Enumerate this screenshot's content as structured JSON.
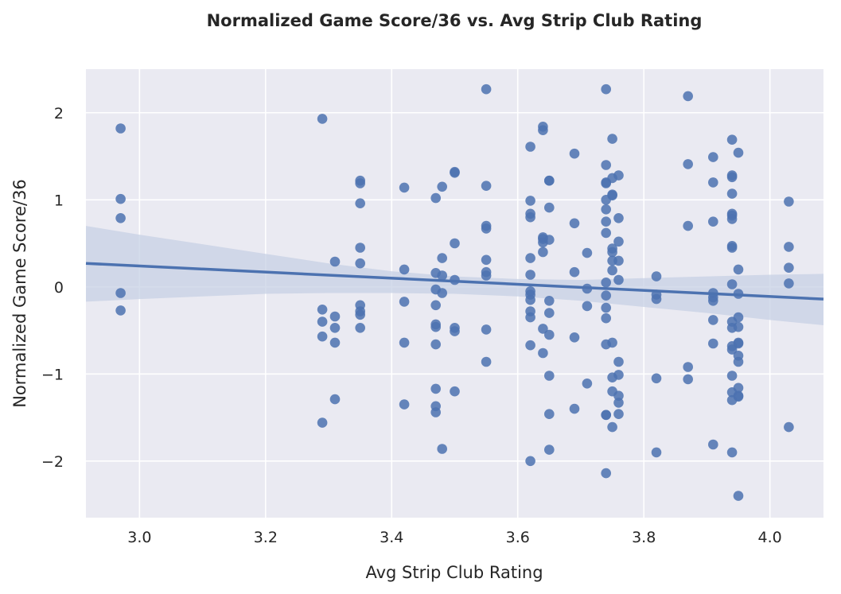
{
  "chart_data": {
    "type": "scatter",
    "title": "Normalized Game Score/36 vs. Avg Strip Club Rating",
    "xlabel": "Avg Strip Club Rating",
    "ylabel": "Normalized Game Score/36",
    "xlim": [
      2.915,
      4.085
    ],
    "ylim": [
      -2.65,
      2.5
    ],
    "xticks": [
      3.0,
      3.2,
      3.4,
      3.6,
      3.8,
      4.0
    ],
    "xtick_labels": [
      "3.0",
      "3.2",
      "3.4",
      "3.6",
      "3.8",
      "4.0"
    ],
    "yticks": [
      -2,
      -1,
      0,
      1,
      2
    ],
    "ytick_labels": [
      "−2",
      "−1",
      "0",
      "1",
      "2"
    ],
    "grid": true,
    "background": "#eaeaf2",
    "point_color": "#4c72b0",
    "line_color": "#4c72b0",
    "band_color": "#c7d0e4",
    "regression": {
      "x": [
        2.915,
        4.085
      ],
      "y": [
        0.27,
        -0.14
      ],
      "ci_lower": [
        -0.17,
        -0.44
      ],
      "ci_upper": [
        0.7,
        0.15
      ]
    },
    "band": [
      [
        2.915,
        0.7
      ],
      [
        3.0,
        0.6
      ],
      [
        3.1,
        0.49
      ],
      [
        3.2,
        0.38
      ],
      [
        3.3,
        0.27
      ],
      [
        3.4,
        0.18
      ],
      [
        3.5,
        0.12
      ],
      [
        3.6,
        0.09
      ],
      [
        3.7,
        0.08
      ],
      [
        3.8,
        0.1
      ],
      [
        3.9,
        0.12
      ],
      [
        4.0,
        0.14
      ],
      [
        4.085,
        0.15
      ],
      [
        4.085,
        -0.44
      ],
      [
        4.0,
        -0.38
      ],
      [
        3.9,
        -0.3
      ],
      [
        3.8,
        -0.23
      ],
      [
        3.7,
        -0.16
      ],
      [
        3.6,
        -0.11
      ],
      [
        3.5,
        -0.08
      ],
      [
        3.4,
        -0.07
      ],
      [
        3.3,
        -0.07
      ],
      [
        3.2,
        -0.08
      ],
      [
        3.1,
        -0.11
      ],
      [
        3.0,
        -0.14
      ],
      [
        2.915,
        -0.17
      ]
    ],
    "points": [
      [
        2.97,
        1.82
      ],
      [
        2.97,
        1.01
      ],
      [
        2.97,
        0.79
      ],
      [
        2.97,
        -0.07
      ],
      [
        2.97,
        -0.27
      ],
      [
        3.29,
        1.93
      ],
      [
        3.29,
        -0.26
      ],
      [
        3.29,
        -0.4
      ],
      [
        3.29,
        -0.57
      ],
      [
        3.29,
        -1.56
      ],
      [
        3.31,
        0.29
      ],
      [
        3.31,
        -0.34
      ],
      [
        3.31,
        -0.47
      ],
      [
        3.31,
        -0.64
      ],
      [
        3.31,
        -1.29
      ],
      [
        3.35,
        1.22
      ],
      [
        3.35,
        1.19
      ],
      [
        3.35,
        0.96
      ],
      [
        3.35,
        0.45
      ],
      [
        3.35,
        0.27
      ],
      [
        3.35,
        -0.21
      ],
      [
        3.35,
        -0.28
      ],
      [
        3.35,
        -0.32
      ],
      [
        3.35,
        -0.47
      ],
      [
        3.42,
        1.14
      ],
      [
        3.42,
        0.2
      ],
      [
        3.42,
        -0.17
      ],
      [
        3.42,
        -0.64
      ],
      [
        3.42,
        -1.35
      ],
      [
        3.47,
        1.02
      ],
      [
        3.47,
        0.16
      ],
      [
        3.47,
        -0.03
      ],
      [
        3.47,
        -0.21
      ],
      [
        3.47,
        -0.43
      ],
      [
        3.47,
        -0.46
      ],
      [
        3.47,
        -0.66
      ],
      [
        3.47,
        -1.17
      ],
      [
        3.47,
        -1.37
      ],
      [
        3.47,
        -1.44
      ],
      [
        3.48,
        1.15
      ],
      [
        3.48,
        0.33
      ],
      [
        3.48,
        0.13
      ],
      [
        3.48,
        -0.07
      ],
      [
        3.48,
        -1.86
      ],
      [
        3.5,
        1.32
      ],
      [
        3.5,
        1.31
      ],
      [
        3.5,
        0.5
      ],
      [
        3.5,
        0.08
      ],
      [
        3.5,
        -0.47
      ],
      [
        3.5,
        -0.51
      ],
      [
        3.5,
        -1.2
      ],
      [
        3.55,
        2.27
      ],
      [
        3.55,
        1.16
      ],
      [
        3.55,
        0.7
      ],
      [
        3.55,
        0.67
      ],
      [
        3.55,
        0.31
      ],
      [
        3.55,
        0.17
      ],
      [
        3.55,
        0.13
      ],
      [
        3.55,
        -0.49
      ],
      [
        3.55,
        -0.86
      ],
      [
        3.62,
        1.61
      ],
      [
        3.62,
        0.99
      ],
      [
        3.62,
        0.84
      ],
      [
        3.62,
        0.8
      ],
      [
        3.62,
        0.33
      ],
      [
        3.62,
        0.14
      ],
      [
        3.62,
        -0.05
      ],
      [
        3.62,
        -0.09
      ],
      [
        3.62,
        -0.15
      ],
      [
        3.62,
        -0.28
      ],
      [
        3.62,
        -0.35
      ],
      [
        3.62,
        -0.67
      ],
      [
        3.62,
        -2.0
      ],
      [
        3.64,
        1.84
      ],
      [
        3.64,
        1.8
      ],
      [
        3.64,
        0.57
      ],
      [
        3.64,
        0.55
      ],
      [
        3.64,
        0.51
      ],
      [
        3.64,
        0.4
      ],
      [
        3.64,
        -0.48
      ],
      [
        3.64,
        -0.76
      ],
      [
        3.65,
        1.22
      ],
      [
        3.65,
        1.22
      ],
      [
        3.65,
        0.91
      ],
      [
        3.65,
        0.54
      ],
      [
        3.65,
        -0.16
      ],
      [
        3.65,
        -0.3
      ],
      [
        3.65,
        -0.55
      ],
      [
        3.65,
        -1.02
      ],
      [
        3.65,
        -1.46
      ],
      [
        3.65,
        -1.87
      ],
      [
        3.69,
        1.53
      ],
      [
        3.69,
        0.73
      ],
      [
        3.69,
        0.17
      ],
      [
        3.69,
        -0.58
      ],
      [
        3.69,
        -1.4
      ],
      [
        3.71,
        0.39
      ],
      [
        3.71,
        -0.02
      ],
      [
        3.71,
        -0.22
      ],
      [
        3.71,
        -1.11
      ],
      [
        3.74,
        2.27
      ],
      [
        3.74,
        1.4
      ],
      [
        3.74,
        1.2
      ],
      [
        3.74,
        1.19
      ],
      [
        3.74,
        1.0
      ],
      [
        3.74,
        0.89
      ],
      [
        3.74,
        0.75
      ],
      [
        3.74,
        0.62
      ],
      [
        3.74,
        0.05
      ],
      [
        3.74,
        -0.1
      ],
      [
        3.74,
        -0.24
      ],
      [
        3.74,
        -0.36
      ],
      [
        3.74,
        -0.66
      ],
      [
        3.74,
        -1.47
      ],
      [
        3.74,
        -1.47
      ],
      [
        3.74,
        -2.14
      ],
      [
        3.75,
        1.7
      ],
      [
        3.75,
        1.25
      ],
      [
        3.75,
        1.06
      ],
      [
        3.75,
        1.05
      ],
      [
        3.75,
        0.44
      ],
      [
        3.75,
        0.4
      ],
      [
        3.75,
        0.3
      ],
      [
        3.75,
        0.19
      ],
      [
        3.75,
        -0.64
      ],
      [
        3.75,
        -1.04
      ],
      [
        3.75,
        -1.2
      ],
      [
        3.75,
        -1.61
      ],
      [
        3.76,
        1.28
      ],
      [
        3.76,
        0.79
      ],
      [
        3.76,
        0.52
      ],
      [
        3.76,
        0.3
      ],
      [
        3.76,
        0.08
      ],
      [
        3.76,
        -0.86
      ],
      [
        3.76,
        -1.01
      ],
      [
        3.76,
        -1.25
      ],
      [
        3.76,
        -1.33
      ],
      [
        3.76,
        -1.46
      ],
      [
        3.82,
        0.12
      ],
      [
        3.82,
        -0.09
      ],
      [
        3.82,
        -0.14
      ],
      [
        3.82,
        -1.05
      ],
      [
        3.82,
        -1.9
      ],
      [
        3.87,
        2.19
      ],
      [
        3.87,
        1.41
      ],
      [
        3.87,
        0.7
      ],
      [
        3.87,
        -0.92
      ],
      [
        3.87,
        -1.06
      ],
      [
        3.91,
        1.49
      ],
      [
        3.91,
        1.2
      ],
      [
        3.91,
        0.75
      ],
      [
        3.91,
        -0.07
      ],
      [
        3.91,
        -0.12
      ],
      [
        3.91,
        -0.16
      ],
      [
        3.91,
        -0.38
      ],
      [
        3.91,
        -0.65
      ],
      [
        3.91,
        -1.81
      ],
      [
        3.94,
        1.69
      ],
      [
        3.94,
        1.28
      ],
      [
        3.94,
        1.26
      ],
      [
        3.94,
        1.07
      ],
      [
        3.94,
        0.84
      ],
      [
        3.94,
        0.82
      ],
      [
        3.94,
        0.78
      ],
      [
        3.94,
        0.47
      ],
      [
        3.94,
        0.45
      ],
      [
        3.94,
        0.03
      ],
      [
        3.94,
        -0.4
      ],
      [
        3.94,
        -0.47
      ],
      [
        3.94,
        -0.68
      ],
      [
        3.94,
        -0.72
      ],
      [
        3.94,
        -1.02
      ],
      [
        3.94,
        -1.21
      ],
      [
        3.94,
        -1.3
      ],
      [
        3.94,
        -1.9
      ],
      [
        3.95,
        1.54
      ],
      [
        3.95,
        0.2
      ],
      [
        3.95,
        -0.08
      ],
      [
        3.95,
        -0.35
      ],
      [
        3.95,
        -0.46
      ],
      [
        3.95,
        -0.64
      ],
      [
        3.95,
        -0.65
      ],
      [
        3.95,
        -0.79
      ],
      [
        3.95,
        -0.86
      ],
      [
        3.95,
        -1.16
      ],
      [
        3.95,
        -1.25
      ],
      [
        3.95,
        -1.26
      ],
      [
        3.95,
        -2.4
      ],
      [
        4.03,
        0.98
      ],
      [
        4.03,
        0.46
      ],
      [
        4.03,
        0.22
      ],
      [
        4.03,
        0.04
      ],
      [
        4.03,
        -1.61
      ]
    ]
  }
}
